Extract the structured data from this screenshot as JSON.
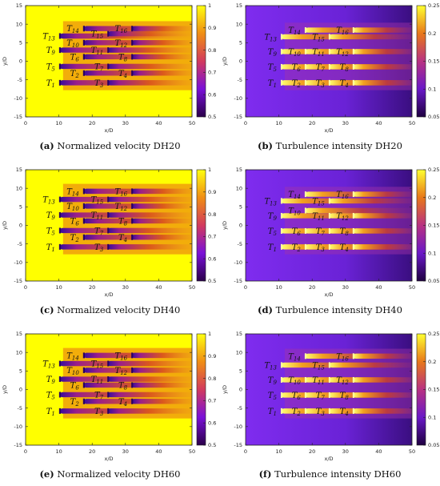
{
  "chart_data": [
    {
      "type": "heatmap",
      "xlabel": "x/D",
      "ylabel": "y/D",
      "xlim": [
        0,
        50
      ],
      "ylim": [
        -15,
        15
      ],
      "xticks": [
        "0",
        "10",
        "20",
        "30",
        "40",
        "50"
      ],
      "yticks": [
        "-15",
        "-10",
        "-5",
        "0",
        "5",
        "10",
        "15"
      ],
      "colorbar": {
        "min": 0.5,
        "max": 1,
        "ticks": [
          "0.5",
          "0.6",
          "0.7",
          "0.8",
          "0.9",
          "1"
        ]
      },
      "turbines": [
        {
          "label": "T",
          "sub": "1",
          "x": 10.3,
          "y": -5.8
        },
        {
          "label": "T",
          "sub": "5",
          "x": 10.3,
          "y": -1.4
        },
        {
          "label": "T",
          "sub": "9",
          "x": 10.3,
          "y": 3.0
        },
        {
          "label": "T",
          "sub": "13",
          "x": 10.3,
          "y": 6.8
        },
        {
          "label": "T",
          "sub": "2",
          "x": 17.5,
          "y": -3.2
        },
        {
          "label": "T",
          "sub": "6",
          "x": 17.5,
          "y": 1.2
        },
        {
          "label": "T",
          "sub": "10",
          "x": 17.5,
          "y": 5.0
        },
        {
          "label": "T",
          "sub": "14",
          "x": 17.5,
          "y": 8.8
        },
        {
          "label": "T",
          "sub": "3",
          "x": 24.8,
          "y": -5.8
        },
        {
          "label": "T",
          "sub": "7",
          "x": 24.8,
          "y": -1.4
        },
        {
          "label": "T",
          "sub": "11",
          "x": 24.8,
          "y": 3.0
        },
        {
          "label": "T",
          "sub": "15",
          "x": 24.8,
          "y": 7.4
        },
        {
          "label": "T",
          "sub": "4",
          "x": 32.0,
          "y": -3.2
        },
        {
          "label": "T",
          "sub": "8",
          "x": 32.0,
          "y": 1.2
        },
        {
          "label": "T",
          "sub": "12",
          "x": 32.0,
          "y": 5.0
        },
        {
          "label": "T",
          "sub": "16",
          "x": 32.0,
          "y": 8.8
        }
      ],
      "caption": {
        "letter": "(a)",
        "text": " Normalized velocity DH20"
      }
    },
    {
      "type": "heatmap",
      "xlabel": "x/D",
      "ylabel": "y/D",
      "xlim": [
        0,
        50
      ],
      "ylim": [
        -15,
        15
      ],
      "xticks": [
        "0",
        "10",
        "20",
        "30",
        "40",
        "50"
      ],
      "yticks": [
        "-15",
        "-10",
        "-5",
        "0",
        "5",
        "10",
        "15"
      ],
      "colorbar": {
        "min": 0.05,
        "max": 0.25,
        "ticks": [
          "0.05",
          "0.1",
          "0.15",
          "0.2",
          "0.25"
        ]
      },
      "turbines": [
        {
          "label": "T",
          "sub": "1",
          "x": 10.8,
          "y": -5.8
        },
        {
          "label": "T",
          "sub": "5",
          "x": 10.8,
          "y": -1.5
        },
        {
          "label": "T",
          "sub": "9",
          "x": 10.8,
          "y": 2.6
        },
        {
          "label": "T",
          "sub": "13",
          "x": 10.8,
          "y": 6.6
        },
        {
          "label": "T",
          "sub": "2",
          "x": 18.0,
          "y": -5.8
        },
        {
          "label": "T",
          "sub": "6",
          "x": 18.0,
          "y": -1.5
        },
        {
          "label": "T",
          "sub": "10",
          "x": 18.0,
          "y": 2.6
        },
        {
          "label": "T",
          "sub": "14",
          "x": 18.0,
          "y": 8.4
        },
        {
          "label": "T",
          "sub": "3",
          "x": 25.2,
          "y": -5.8
        },
        {
          "label": "T",
          "sub": "7",
          "x": 25.2,
          "y": -1.5
        },
        {
          "label": "T",
          "sub": "11",
          "x": 25.2,
          "y": 2.6
        },
        {
          "label": "T",
          "sub": "15",
          "x": 25.2,
          "y": 6.6
        },
        {
          "label": "T",
          "sub": "4",
          "x": 32.4,
          "y": -5.8
        },
        {
          "label": "T",
          "sub": "8",
          "x": 32.4,
          "y": -1.5
        },
        {
          "label": "T",
          "sub": "12",
          "x": 32.4,
          "y": 2.6
        },
        {
          "label": "T",
          "sub": "16",
          "x": 32.4,
          "y": 8.4
        }
      ],
      "caption": {
        "letter": "(b)",
        "text": " Turbulence intensity DH20"
      }
    },
    {
      "type": "heatmap",
      "xlabel": "x/D",
      "ylabel": "y/D",
      "xlim": [
        0,
        50
      ],
      "ylim": [
        -15,
        15
      ],
      "xticks": [
        "0",
        "10",
        "20",
        "30",
        "40",
        "50"
      ],
      "yticks": [
        "-15",
        "-10",
        "-5",
        "0",
        "5",
        "10",
        "15"
      ],
      "colorbar": {
        "min": 0.5,
        "max": 1,
        "ticks": [
          "0.5",
          "0.6",
          "0.7",
          "0.8",
          "0.9",
          "1"
        ]
      },
      "turbines": [
        {
          "label": "T",
          "sub": "1",
          "x": 10.3,
          "y": -5.8
        },
        {
          "label": "T",
          "sub": "5",
          "x": 10.3,
          "y": -1.4
        },
        {
          "label": "T",
          "sub": "9",
          "x": 10.3,
          "y": 2.8
        },
        {
          "label": "T",
          "sub": "13",
          "x": 10.3,
          "y": 7.0
        },
        {
          "label": "T",
          "sub": "2",
          "x": 17.5,
          "y": -3.2
        },
        {
          "label": "T",
          "sub": "6",
          "x": 17.5,
          "y": 1.2
        },
        {
          "label": "T",
          "sub": "10",
          "x": 17.5,
          "y": 5.2
        },
        {
          "label": "T",
          "sub": "14",
          "x": 17.5,
          "y": 9.2
        },
        {
          "label": "T",
          "sub": "3",
          "x": 24.8,
          "y": -5.8
        },
        {
          "label": "T",
          "sub": "7",
          "x": 24.8,
          "y": -1.4
        },
        {
          "label": "T",
          "sub": "11",
          "x": 24.8,
          "y": 2.8
        },
        {
          "label": "T",
          "sub": "15",
          "x": 24.8,
          "y": 7.0
        },
        {
          "label": "T",
          "sub": "4",
          "x": 32.0,
          "y": -3.2
        },
        {
          "label": "T",
          "sub": "8",
          "x": 32.0,
          "y": 1.2
        },
        {
          "label": "T",
          "sub": "12",
          "x": 32.0,
          "y": 5.2
        },
        {
          "label": "T",
          "sub": "16",
          "x": 32.0,
          "y": 9.2
        }
      ],
      "caption": {
        "letter": "(c)",
        "text": " Normalized velocity DH40"
      }
    },
    {
      "type": "heatmap",
      "xlabel": "x/D",
      "ylabel": "y/D",
      "xlim": [
        0,
        50
      ],
      "ylim": [
        -15,
        15
      ],
      "xticks": [
        "0",
        "10",
        "20",
        "30",
        "40",
        "50"
      ],
      "yticks": [
        "-15",
        "-10",
        "-5",
        "0",
        "5",
        "10",
        "15"
      ],
      "colorbar": {
        "min": 0.05,
        "max": 0.25,
        "ticks": [
          "0.05",
          "0.1",
          "0.15",
          "0.2",
          "0.25"
        ]
      },
      "turbines": [
        {
          "label": "T",
          "sub": "1",
          "x": 10.8,
          "y": -5.8
        },
        {
          "label": "T",
          "sub": "5",
          "x": 10.8,
          "y": -1.5
        },
        {
          "label": "T",
          "sub": "9",
          "x": 10.8,
          "y": 2.6
        },
        {
          "label": "T",
          "sub": "13",
          "x": 10.8,
          "y": 6.6
        },
        {
          "label": "T",
          "sub": "2",
          "x": 18.0,
          "y": -5.8
        },
        {
          "label": "T",
          "sub": "6",
          "x": 18.0,
          "y": -1.5
        },
        {
          "label": "T",
          "sub": "10",
          "x": 18.0,
          "y": 4.0
        },
        {
          "label": "T",
          "sub": "14",
          "x": 18.0,
          "y": 8.4
        },
        {
          "label": "T",
          "sub": "3",
          "x": 25.2,
          "y": -5.8
        },
        {
          "label": "T",
          "sub": "7",
          "x": 25.2,
          "y": -1.5
        },
        {
          "label": "T",
          "sub": "11",
          "x": 25.2,
          "y": 2.6
        },
        {
          "label": "T",
          "sub": "15",
          "x": 25.2,
          "y": 6.6
        },
        {
          "label": "T",
          "sub": "4",
          "x": 32.4,
          "y": -5.8
        },
        {
          "label": "T",
          "sub": "8",
          "x": 32.4,
          "y": -1.5
        },
        {
          "label": "T",
          "sub": "12",
          "x": 32.4,
          "y": 2.6
        },
        {
          "label": "T",
          "sub": "16",
          "x": 32.4,
          "y": 8.4
        }
      ],
      "caption": {
        "letter": "(d)",
        "text": " Turbulence intensity DH40"
      }
    },
    {
      "type": "heatmap",
      "xlabel": "x/D",
      "ylabel": "y/D",
      "xlim": [
        0,
        50
      ],
      "ylim": [
        -15,
        15
      ],
      "xticks": [
        "0",
        "10",
        "20",
        "30",
        "40",
        "50"
      ],
      "yticks": [
        "-15",
        "-10",
        "-5",
        "0",
        "5",
        "10",
        "15"
      ],
      "colorbar": {
        "min": 0.5,
        "max": 1,
        "ticks": [
          "0.5",
          "0.6",
          "0.7",
          "0.8",
          "0.9",
          "1"
        ]
      },
      "turbines": [
        {
          "label": "T",
          "sub": "1",
          "x": 10.3,
          "y": -5.8
        },
        {
          "label": "T",
          "sub": "5",
          "x": 10.3,
          "y": -1.4
        },
        {
          "label": "T",
          "sub": "9",
          "x": 10.3,
          "y": 2.8
        },
        {
          "label": "T",
          "sub": "13",
          "x": 10.3,
          "y": 7.0
        },
        {
          "label": "T",
          "sub": "2",
          "x": 17.5,
          "y": -3.2
        },
        {
          "label": "T",
          "sub": "6",
          "x": 17.5,
          "y": 1.2
        },
        {
          "label": "T",
          "sub": "10",
          "x": 17.5,
          "y": 5.2
        },
        {
          "label": "T",
          "sub": "14",
          "x": 17.5,
          "y": 9.2
        },
        {
          "label": "T",
          "sub": "3",
          "x": 24.8,
          "y": -5.8
        },
        {
          "label": "T",
          "sub": "7",
          "x": 24.8,
          "y": -1.4
        },
        {
          "label": "T",
          "sub": "11",
          "x": 24.8,
          "y": 2.8
        },
        {
          "label": "T",
          "sub": "15",
          "x": 24.8,
          "y": 7.0
        },
        {
          "label": "T",
          "sub": "4",
          "x": 32.0,
          "y": -3.2
        },
        {
          "label": "T",
          "sub": "8",
          "x": 32.0,
          "y": 1.2
        },
        {
          "label": "T",
          "sub": "12",
          "x": 32.0,
          "y": 5.2
        },
        {
          "label": "T",
          "sub": "16",
          "x": 32.0,
          "y": 9.2
        }
      ],
      "caption": {
        "letter": "(e)",
        "text": " Normalized velocity DH60"
      }
    },
    {
      "type": "heatmap",
      "xlabel": "x/D",
      "ylabel": "y/D",
      "xlim": [
        0,
        50
      ],
      "ylim": [
        -15,
        15
      ],
      "xticks": [
        "0",
        "10",
        "20",
        "30",
        "40",
        "50"
      ],
      "yticks": [
        "-15",
        "-10",
        "-5",
        "0",
        "5",
        "10",
        "15"
      ],
      "colorbar": {
        "min": 0.05,
        "max": 0.25,
        "ticks": [
          "0.05",
          "0.1",
          "0.15",
          "0.2",
          "0.25"
        ]
      },
      "turbines": [
        {
          "label": "T",
          "sub": "1",
          "x": 10.8,
          "y": -5.8
        },
        {
          "label": "T",
          "sub": "5",
          "x": 10.8,
          "y": -1.5
        },
        {
          "label": "T",
          "sub": "9",
          "x": 10.8,
          "y": 2.6
        },
        {
          "label": "T",
          "sub": "13",
          "x": 10.8,
          "y": 6.6
        },
        {
          "label": "T",
          "sub": "2",
          "x": 18.0,
          "y": -5.8
        },
        {
          "label": "T",
          "sub": "6",
          "x": 18.0,
          "y": -1.5
        },
        {
          "label": "T",
          "sub": "10",
          "x": 18.0,
          "y": 2.6
        },
        {
          "label": "T",
          "sub": "14",
          "x": 18.0,
          "y": 9.0
        },
        {
          "label": "T",
          "sub": "3",
          "x": 25.2,
          "y": -5.8
        },
        {
          "label": "T",
          "sub": "7",
          "x": 25.2,
          "y": -1.5
        },
        {
          "label": "T",
          "sub": "11",
          "x": 25.2,
          "y": 2.6
        },
        {
          "label": "T",
          "sub": "15",
          "x": 25.2,
          "y": 6.6
        },
        {
          "label": "T",
          "sub": "4",
          "x": 32.4,
          "y": -5.8
        },
        {
          "label": "T",
          "sub": "8",
          "x": 32.4,
          "y": -1.5
        },
        {
          "label": "T",
          "sub": "12",
          "x": 32.4,
          "y": 2.6
        },
        {
          "label": "T",
          "sub": "16",
          "x": 32.4,
          "y": 9.0
        }
      ],
      "caption": {
        "letter": "(f)",
        "text": " Turbulence intensity DH60"
      }
    }
  ]
}
